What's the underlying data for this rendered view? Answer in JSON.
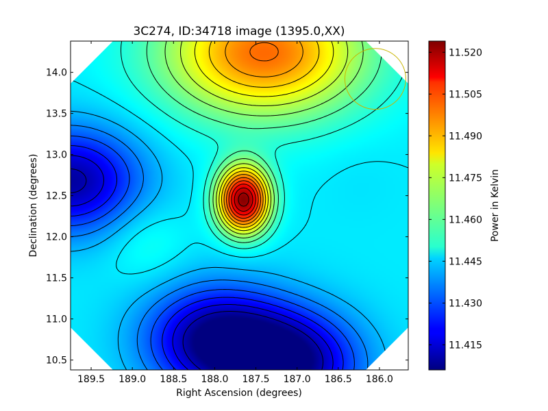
{
  "chart_data": {
    "type": "heatmap",
    "title": "3C274, ID:34718 image (1395.0,XX)",
    "xlabel": "Right Ascension (degrees)",
    "ylabel": "Declination (degrees)",
    "colorbar_label": "Power in Kelvin",
    "xlim": [
      189.75,
      185.65
    ],
    "ylim": [
      10.38,
      14.38
    ],
    "x_axis_inverted": true,
    "colormap": "jet",
    "xticks": [
      189.5,
      189.0,
      188.5,
      188.0,
      187.5,
      187.0,
      186.5,
      186.0
    ],
    "xtick_labels": [
      "189.5",
      "189.0",
      "188.5",
      "188.0",
      "187.5",
      "187.0",
      "186.5",
      "186.0"
    ],
    "yticks": [
      10.5,
      11.0,
      11.5,
      12.0,
      12.5,
      13.0,
      13.5,
      14.0
    ],
    "ytick_labels": [
      "10.5",
      "11.0",
      "11.5",
      "12.0",
      "12.5",
      "13.0",
      "13.5",
      "14.0"
    ],
    "colorbar_range": [
      11.406,
      11.524
    ],
    "colorbar_ticks": [
      11.415,
      11.43,
      11.445,
      11.46,
      11.475,
      11.49,
      11.505,
      11.52
    ],
    "colorbar_tick_labels": [
      "11.415",
      "11.430",
      "11.445",
      "11.460",
      "11.475",
      "11.490",
      "11.505",
      "11.520"
    ],
    "contours": true,
    "features": [
      {
        "kind": "peak",
        "ra": 187.65,
        "dec": 12.45,
        "value": 11.523
      },
      {
        "kind": "high",
        "ra": 187.4,
        "dec": 14.25,
        "value": 11.497
      },
      {
        "kind": "low",
        "ra": 189.75,
        "dec": 12.68,
        "value": 11.41
      },
      {
        "kind": "low",
        "ra": 188.0,
        "dec": 10.75,
        "value": 11.408
      },
      {
        "kind": "low",
        "ra": 187.1,
        "dec": 10.45,
        "value": 11.406
      },
      {
        "kind": "local-high",
        "ra": 186.25,
        "dec": 12.72,
        "value": 11.447
      },
      {
        "kind": "local-high",
        "ra": 188.85,
        "dec": 11.95,
        "value": 11.454
      }
    ],
    "beam_circle": {
      "ra": 186.05,
      "dec": 13.92,
      "radius_deg": 0.37,
      "color": "#c8b400"
    }
  }
}
